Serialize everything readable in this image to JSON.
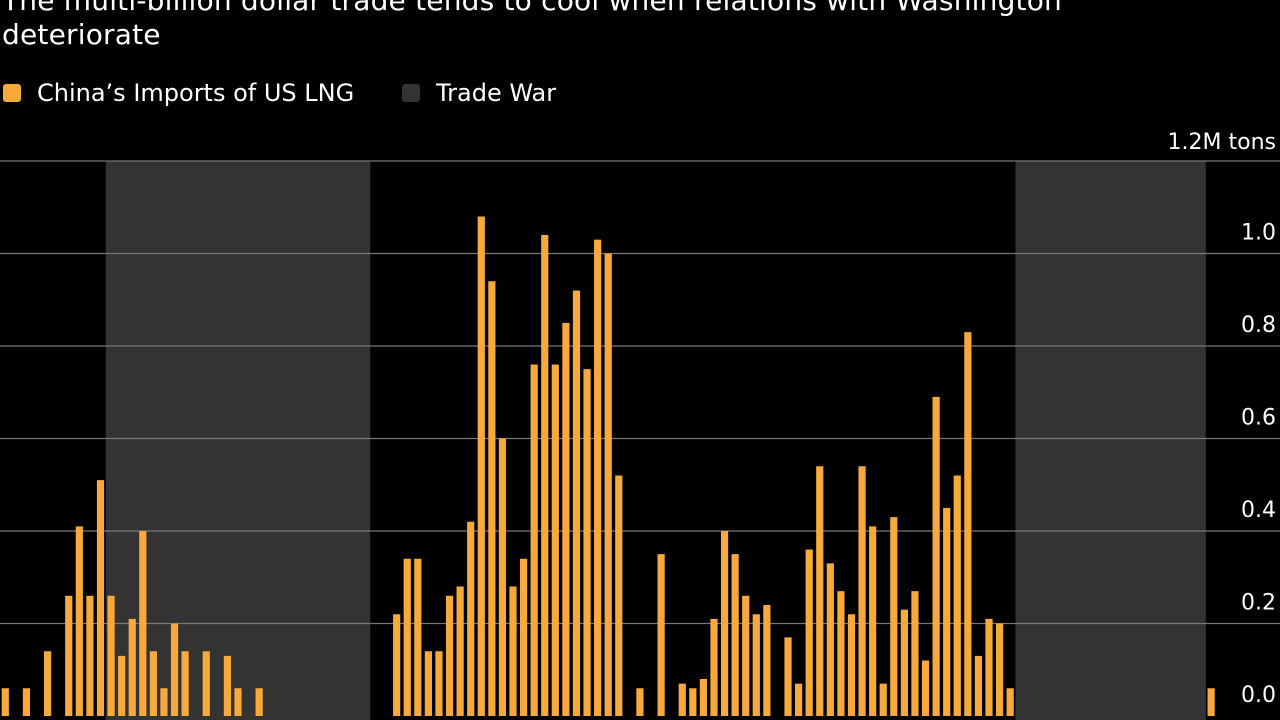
{
  "chart": {
    "title_line_1": "The multi-billion dollar trade tends to cool when relations with Washington",
    "title_line_2": "deteriorate"
  },
  "legend": {
    "imports_label": "China’s Imports of US LNG",
    "tradewar_label": "Trade War"
  },
  "colors": {
    "background": "#000000",
    "bar": "#f7a93b",
    "trade_war": "#333333",
    "grid": "#777777",
    "text": "#ffffff"
  },
  "chart_data": {
    "type": "bar",
    "title": "The multi-billion dollar trade tends to cool when relations with Washington deteriorate",
    "ylabel": "",
    "y_unit_label": "1.2M tons",
    "ylim": [
      0,
      1.2
    ],
    "yticks": [
      0.0,
      0.2,
      0.4,
      0.6,
      0.8,
      1.0
    ],
    "ytick_labels": [
      "0.0",
      "0.2",
      "0.4",
      "0.6",
      "0.8",
      "1.0"
    ],
    "axis_side": "right",
    "grid": true,
    "legend_position": "top-left",
    "period_count": 116,
    "series": [
      {
        "name": "China’s Imports of US LNG",
        "values": [
          0.06,
          0,
          0.06,
          0,
          0.14,
          0,
          0.26,
          0.41,
          0.26,
          0.51,
          0.26,
          0.13,
          0.21,
          0.4,
          0.14,
          0.06,
          0.2,
          0.14,
          0,
          0.14,
          0,
          0.13,
          0.06,
          0,
          0.06,
          0,
          0,
          0,
          0,
          0,
          0,
          0,
          0,
          0,
          0,
          0,
          0,
          0.22,
          0.34,
          0.34,
          0.14,
          0.14,
          0.26,
          0.28,
          0.42,
          1.08,
          0.94,
          0.6,
          0.28,
          0.34,
          0.76,
          1.04,
          0.76,
          0.85,
          0.92,
          0.75,
          1.03,
          1.0,
          0.52,
          0,
          0.06,
          0,
          0.35,
          0,
          0.07,
          0.06,
          0.08,
          0.21,
          0.4,
          0.35,
          0.26,
          0.22,
          0.24,
          0,
          0.17,
          0.07,
          0.36,
          0.54,
          0.33,
          0.27,
          0.22,
          0.54,
          0.41,
          0.07,
          0.43,
          0.23,
          0.27,
          0.12,
          0.69,
          0.45,
          0.52,
          0.83,
          0.13,
          0.21,
          0.2,
          0.06,
          0,
          0,
          0,
          0,
          0,
          0,
          0,
          0,
          0,
          0,
          0,
          0,
          0,
          0,
          0,
          0,
          0,
          0,
          0.06,
          0
        ]
      }
    ],
    "trade_war_periods": [
      {
        "start_index": 10,
        "end_index": 34
      },
      {
        "start_index": 96,
        "end_index": 113
      }
    ]
  }
}
